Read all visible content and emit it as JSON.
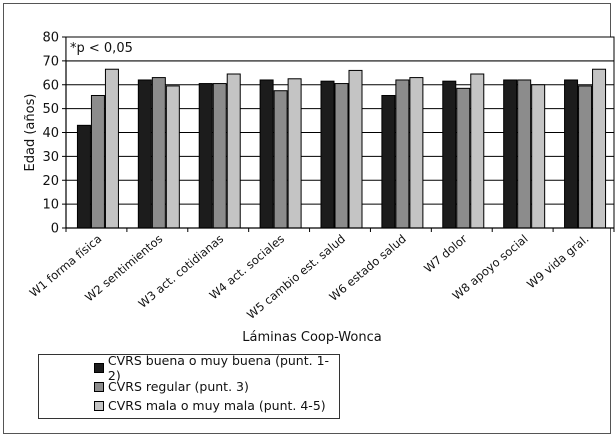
{
  "chart_data": {
    "type": "bar",
    "note": "*p < 0,05",
    "xlabel": "Láminas Coop-Wonca",
    "ylabel": "Edad (años)",
    "ylim": [
      0,
      80
    ],
    "yticks": [
      0,
      10,
      20,
      30,
      40,
      50,
      60,
      70,
      80
    ],
    "grid": true,
    "legend_position": "bottom-left",
    "categories": [
      "W1 forma física",
      "W2 sentimientos",
      "W3 act. cotidianas",
      "W4 act. sociales",
      "W5 cambio est. salud",
      "W6 estado salud",
      "W7 dolor",
      "W8 apoyo social",
      "W9 vida gral."
    ],
    "series": [
      {
        "name": "CVRS buena o muy buena (punt. 1-2)",
        "color": "#1c1c1c",
        "values": [
          43,
          62,
          60.5,
          62,
          61.5,
          55.5,
          61.5,
          62,
          62
        ]
      },
      {
        "name": "CVRS regular (punt. 3)",
        "color": "#8c8c8c",
        "values": [
          55.5,
          63,
          60.5,
          57.5,
          60.5,
          62,
          58.5,
          62,
          59.5
        ]
      },
      {
        "name": "CVRS mala o muy mala (punt. 4-5)",
        "color": "#c4c4c4",
        "values": [
          66.5,
          59.5,
          64.5,
          62.5,
          66,
          63,
          64.5,
          60,
          66.5
        ]
      }
    ]
  }
}
